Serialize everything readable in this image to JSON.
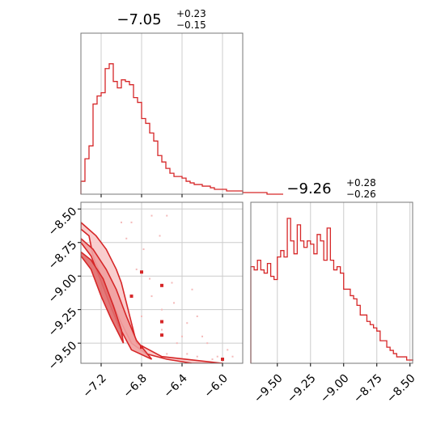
{
  "chart_data": [
    {
      "type": "step-histogram",
      "panel": "top-left",
      "title": {
        "main": "−7.05",
        "sup": "+0.23",
        "sub": "−0.15"
      },
      "xlim": [
        -7.4,
        -5.8
      ],
      "grid": true,
      "color": "#d62728",
      "bin_width": 0.04,
      "bin_start": -7.4,
      "values": [
        0.08,
        0.22,
        0.3,
        0.56,
        0.61,
        0.63,
        0.78,
        0.81,
        0.7,
        0.66,
        0.71,
        0.7,
        0.68,
        0.6,
        0.57,
        0.47,
        0.44,
        0.38,
        0.33,
        0.24,
        0.2,
        0.16,
        0.13,
        0.11,
        0.11,
        0.1,
        0.08,
        0.07,
        0.06,
        0.06,
        0.05,
        0.05,
        0.04,
        0.03,
        0.03,
        0.03,
        0.02,
        0.02,
        0.02,
        0.02,
        0.01,
        0.01,
        0.01,
        0.01,
        0.01,
        0.01,
        0.0,
        0.0,
        0.0,
        0.0
      ]
    },
    {
      "type": "contour",
      "panel": "bottom-left",
      "xlim": [
        -7.4,
        -5.8
      ],
      "ylim": [
        -9.65,
        -8.45
      ],
      "x_ticks": [
        -7.2,
        -6.8,
        -6.4,
        -6.0
      ],
      "x_tick_labels": [
        "−7.2",
        "−6.8",
        "−6.4",
        "−6.0"
      ],
      "y_ticks": [
        -8.5,
        -8.75,
        -9.0,
        -9.25,
        -9.5
      ],
      "y_tick_labels": [
        "−8.50",
        "−8.75",
        "−9.00",
        "−9.25",
        "−9.50"
      ],
      "grid": true,
      "color": "#d62728",
      "contours": [
        [
          [
            -7.4,
            -8.65
          ],
          [
            -7.32,
            -8.7
          ],
          [
            -7.28,
            -8.85
          ],
          [
            -7.2,
            -9.0
          ],
          [
            -7.1,
            -9.18
          ],
          [
            -7.0,
            -9.35
          ],
          [
            -6.9,
            -9.5
          ],
          [
            -6.75,
            -9.58
          ],
          [
            -6.55,
            -9.62
          ],
          [
            -6.3,
            -9.65
          ],
          [
            -6.0,
            -9.65
          ],
          [
            -6.6,
            -9.6
          ],
          [
            -6.85,
            -9.5
          ],
          [
            -6.9,
            -9.35
          ],
          [
            -6.95,
            -9.2
          ],
          [
            -7.0,
            -9.05
          ],
          [
            -7.05,
            -8.95
          ],
          [
            -7.15,
            -8.8
          ],
          [
            -7.25,
            -8.7
          ],
          [
            -7.4,
            -8.6
          ]
        ],
        [
          [
            -7.4,
            -8.75
          ],
          [
            -7.3,
            -8.85
          ],
          [
            -7.22,
            -9.0
          ],
          [
            -7.12,
            -9.2
          ],
          [
            -7.02,
            -9.38
          ],
          [
            -6.9,
            -9.55
          ],
          [
            -6.7,
            -9.62
          ],
          [
            -6.85,
            -9.48
          ],
          [
            -6.95,
            -9.3
          ],
          [
            -7.05,
            -9.1
          ],
          [
            -7.15,
            -8.95
          ],
          [
            -7.28,
            -8.8
          ],
          [
            -7.4,
            -8.72
          ]
        ],
        [
          [
            -7.4,
            -8.85
          ],
          [
            -7.3,
            -8.95
          ],
          [
            -7.2,
            -9.15
          ],
          [
            -7.1,
            -9.32
          ],
          [
            -6.98,
            -9.5
          ],
          [
            -7.0,
            -9.4
          ],
          [
            -7.08,
            -9.22
          ],
          [
            -7.18,
            -9.02
          ],
          [
            -7.3,
            -8.88
          ],
          [
            -7.4,
            -8.82
          ]
        ]
      ],
      "samples": [
        [
          -6.55,
          -8.55
        ],
        [
          -6.9,
          -8.6
        ],
        [
          -6.5,
          -9.05
        ],
        [
          -6.35,
          -9.35
        ],
        [
          -6.2,
          -9.45
        ],
        [
          -6.05,
          -9.6
        ],
        [
          -5.95,
          -9.55
        ],
        [
          -6.6,
          -9.25
        ],
        [
          -6.45,
          -9.5
        ],
        [
          -6.25,
          -9.6
        ],
        [
          -6.85,
          -8.95
        ],
        [
          -6.7,
          -9.15
        ],
        [
          -6.6,
          -9.4
        ],
        [
          -6.35,
          -9.58
        ],
        [
          -6.0,
          -9.63
        ],
        [
          -6.78,
          -8.8
        ],
        [
          -6.62,
          -8.7
        ],
        [
          -6.95,
          -8.72
        ],
        [
          -6.72,
          -9.02
        ],
        [
          -6.48,
          -9.2
        ],
        [
          -6.25,
          -9.3
        ],
        [
          -6.15,
          -9.5
        ],
        [
          -6.4,
          -9.45
        ],
        [
          -6.8,
          -9.3
        ],
        [
          -6.55,
          -9.58
        ],
        [
          -6.1,
          -9.62
        ],
        [
          -5.9,
          -9.6
        ],
        [
          -6.7,
          -8.55
        ],
        [
          -7.0,
          -8.6
        ],
        [
          -6.3,
          -9.1
        ]
      ],
      "highlight_points": [
        [
          -6.8,
          -8.97
        ],
        [
          -6.6,
          -9.07
        ],
        [
          -6.6,
          -9.34
        ],
        [
          -6.6,
          -9.44
        ],
        [
          -6.0,
          -9.62
        ],
        [
          -6.9,
          -9.15
        ],
        [
          -6.8,
          -9.53
        ]
      ]
    },
    {
      "type": "step-histogram",
      "panel": "bottom-right",
      "title": {
        "main": "−9.26",
        "sup": "+0.28",
        "sub": "−0.26"
      },
      "xlim": [
        -9.7,
        -8.48
      ],
      "x_ticks": [
        -9.5,
        -9.25,
        -9.0,
        -8.75,
        -8.5
      ],
      "x_tick_labels": [
        "−9.50",
        "−9.25",
        "−9.00",
        "−8.75",
        "−8.50"
      ],
      "grid": true,
      "color": "#d62728",
      "bin_width": 0.025,
      "bin_start": -9.7,
      "values": [
        0.6,
        0.58,
        0.64,
        0.58,
        0.56,
        0.62,
        0.54,
        0.52,
        0.66,
        0.7,
        0.66,
        0.9,
        0.76,
        0.68,
        0.86,
        0.76,
        0.72,
        0.76,
        0.74,
        0.68,
        0.8,
        0.76,
        0.64,
        0.84,
        0.64,
        0.58,
        0.6,
        0.56,
        0.46,
        0.46,
        0.42,
        0.4,
        0.36,
        0.3,
        0.3,
        0.26,
        0.24,
        0.22,
        0.2,
        0.14,
        0.14,
        0.1,
        0.08,
        0.06,
        0.04,
        0.04,
        0.04,
        0.02,
        0.02
      ]
    }
  ]
}
